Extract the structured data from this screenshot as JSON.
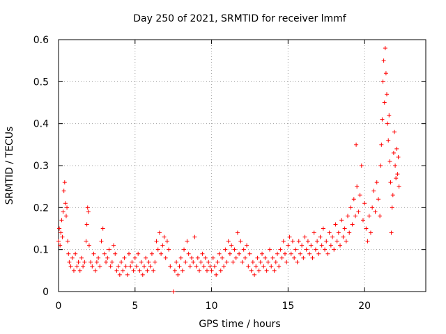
{
  "chart_data": {
    "type": "scatter",
    "title": "Day 250 of 2021, SRMTID for receiver lmmf",
    "xlabel": "GPS time / hours",
    "ylabel": "SRMTID / TECUs",
    "xlim": [
      0,
      24
    ],
    "ylim": [
      0,
      0.6
    ],
    "xticks": [
      0,
      5,
      10,
      15,
      20
    ],
    "xtick_labels": [
      "0",
      "5",
      "10",
      "15",
      "20"
    ],
    "yticks": [
      0,
      0.1,
      0.2,
      0.3,
      0.4,
      0.5,
      0.6
    ],
    "ytick_labels": [
      "0",
      "0.1",
      "0.2",
      "0.3",
      "0.4",
      "0.5",
      "0.6"
    ],
    "grid": true,
    "marker": "+",
    "series": [
      {
        "name": "SRMTID",
        "color": "#ff0000",
        "points": [
          [
            0.0,
            0.12
          ],
          [
            0.05,
            0.15
          ],
          [
            0.1,
            0.11
          ],
          [
            0.15,
            0.14
          ],
          [
            0.2,
            0.17
          ],
          [
            0.25,
            0.13
          ],
          [
            0.3,
            0.19
          ],
          [
            0.35,
            0.24
          ],
          [
            0.4,
            0.26
          ],
          [
            0.45,
            0.21
          ],
          [
            0.5,
            0.18
          ],
          [
            0.55,
            0.2
          ],
          [
            0.6,
            0.12
          ],
          [
            0.65,
            0.09
          ],
          [
            0.7,
            0.07
          ],
          [
            0.8,
            0.06
          ],
          [
            0.9,
            0.08
          ],
          [
            1.0,
            0.05
          ],
          [
            1.1,
            0.09
          ],
          [
            1.2,
            0.06
          ],
          [
            1.3,
            0.07
          ],
          [
            1.4,
            0.05
          ],
          [
            1.5,
            0.08
          ],
          [
            1.6,
            0.06
          ],
          [
            1.7,
            0.07
          ],
          [
            1.8,
            0.12
          ],
          [
            1.85,
            0.16
          ],
          [
            1.9,
            0.2
          ],
          [
            1.95,
            0.19
          ],
          [
            2.0,
            0.11
          ],
          [
            2.1,
            0.07
          ],
          [
            2.2,
            0.06
          ],
          [
            2.3,
            0.09
          ],
          [
            2.4,
            0.05
          ],
          [
            2.5,
            0.07
          ],
          [
            2.6,
            0.08
          ],
          [
            2.7,
            0.06
          ],
          [
            2.8,
            0.12
          ],
          [
            2.9,
            0.15
          ],
          [
            3.0,
            0.09
          ],
          [
            3.1,
            0.07
          ],
          [
            3.2,
            0.08
          ],
          [
            3.3,
            0.1
          ],
          [
            3.4,
            0.06
          ],
          [
            3.5,
            0.07
          ],
          [
            3.6,
            0.11
          ],
          [
            3.7,
            0.09
          ],
          [
            3.8,
            0.05
          ],
          [
            3.9,
            0.06
          ],
          [
            4.0,
            0.04
          ],
          [
            4.1,
            0.07
          ],
          [
            4.2,
            0.05
          ],
          [
            4.3,
            0.08
          ],
          [
            4.4,
            0.06
          ],
          [
            4.5,
            0.04
          ],
          [
            4.6,
            0.09
          ],
          [
            4.7,
            0.06
          ],
          [
            4.8,
            0.07
          ],
          [
            4.9,
            0.05
          ],
          [
            5.0,
            0.08
          ],
          [
            5.1,
            0.06
          ],
          [
            5.2,
            0.09
          ],
          [
            5.3,
            0.05
          ],
          [
            5.4,
            0.07
          ],
          [
            5.5,
            0.04
          ],
          [
            5.6,
            0.06
          ],
          [
            5.7,
            0.08
          ],
          [
            5.8,
            0.05
          ],
          [
            5.9,
            0.07
          ],
          [
            6.0,
            0.06
          ],
          [
            6.1,
            0.09
          ],
          [
            6.2,
            0.05
          ],
          [
            6.3,
            0.07
          ],
          [
            6.4,
            0.12
          ],
          [
            6.5,
            0.1
          ],
          [
            6.6,
            0.14
          ],
          [
            6.7,
            0.09
          ],
          [
            6.8,
            0.11
          ],
          [
            6.9,
            0.13
          ],
          [
            7.0,
            0.08
          ],
          [
            7.1,
            0.12
          ],
          [
            7.2,
            0.1
          ],
          [
            7.3,
            0.06
          ],
          [
            7.5,
            0.0
          ],
          [
            7.6,
            0.05
          ],
          [
            7.7,
            0.07
          ],
          [
            7.8,
            0.04
          ],
          [
            7.9,
            0.06
          ],
          [
            8.0,
            0.08
          ],
          [
            8.1,
            0.05
          ],
          [
            8.2,
            0.1
          ],
          [
            8.3,
            0.07
          ],
          [
            8.4,
            0.12
          ],
          [
            8.5,
            0.09
          ],
          [
            8.6,
            0.06
          ],
          [
            8.7,
            0.08
          ],
          [
            8.8,
            0.07
          ],
          [
            8.9,
            0.13
          ],
          [
            9.0,
            0.06
          ],
          [
            9.1,
            0.08
          ],
          [
            9.2,
            0.05
          ],
          [
            9.3,
            0.07
          ],
          [
            9.4,
            0.09
          ],
          [
            9.5,
            0.06
          ],
          [
            9.6,
            0.08
          ],
          [
            9.7,
            0.05
          ],
          [
            9.8,
            0.07
          ],
          [
            9.9,
            0.06
          ],
          [
            10.0,
            0.05
          ],
          [
            10.1,
            0.08
          ],
          [
            10.2,
            0.06
          ],
          [
            10.3,
            0.04
          ],
          [
            10.4,
            0.07
          ],
          [
            10.5,
            0.09
          ],
          [
            10.6,
            0.05
          ],
          [
            10.7,
            0.08
          ],
          [
            10.8,
            0.06
          ],
          [
            10.9,
            0.1
          ],
          [
            11.0,
            0.07
          ],
          [
            11.1,
            0.12
          ],
          [
            11.2,
            0.09
          ],
          [
            11.3,
            0.11
          ],
          [
            11.4,
            0.07
          ],
          [
            11.5,
            0.1
          ],
          [
            11.6,
            0.08
          ],
          [
            11.7,
            0.14
          ],
          [
            11.8,
            0.09
          ],
          [
            11.9,
            0.12
          ],
          [
            12.0,
            0.07
          ],
          [
            12.1,
            0.1
          ],
          [
            12.2,
            0.08
          ],
          [
            12.3,
            0.11
          ],
          [
            12.4,
            0.06
          ],
          [
            12.5,
            0.09
          ],
          [
            12.6,
            0.05
          ],
          [
            12.7,
            0.07
          ],
          [
            12.8,
            0.04
          ],
          [
            12.9,
            0.06
          ],
          [
            13.0,
            0.08
          ],
          [
            13.1,
            0.05
          ],
          [
            13.2,
            0.07
          ],
          [
            13.3,
            0.09
          ],
          [
            13.4,
            0.06
          ],
          [
            13.5,
            0.08
          ],
          [
            13.6,
            0.05
          ],
          [
            13.7,
            0.07
          ],
          [
            13.8,
            0.1
          ],
          [
            13.9,
            0.06
          ],
          [
            14.0,
            0.08
          ],
          [
            14.1,
            0.05
          ],
          [
            14.2,
            0.07
          ],
          [
            14.3,
            0.09
          ],
          [
            14.4,
            0.06
          ],
          [
            14.5,
            0.1
          ],
          [
            14.6,
            0.08
          ],
          [
            14.7,
            0.12
          ],
          [
            14.8,
            0.09
          ],
          [
            14.9,
            0.07
          ],
          [
            15.0,
            0.11
          ],
          [
            15.1,
            0.13
          ],
          [
            15.2,
            0.09
          ],
          [
            15.3,
            0.12
          ],
          [
            15.4,
            0.08
          ],
          [
            15.5,
            0.1
          ],
          [
            15.6,
            0.07
          ],
          [
            15.7,
            0.12
          ],
          [
            15.8,
            0.09
          ],
          [
            15.9,
            0.11
          ],
          [
            16.0,
            0.08
          ],
          [
            16.1,
            0.13
          ],
          [
            16.2,
            0.1
          ],
          [
            16.3,
            0.12
          ],
          [
            16.4,
            0.09
          ],
          [
            16.5,
            0.11
          ],
          [
            16.6,
            0.08
          ],
          [
            16.7,
            0.14
          ],
          [
            16.8,
            0.1
          ],
          [
            16.9,
            0.12
          ],
          [
            17.0,
            0.09
          ],
          [
            17.1,
            0.13
          ],
          [
            17.2,
            0.11
          ],
          [
            17.3,
            0.15
          ],
          [
            17.4,
            0.1
          ],
          [
            17.5,
            0.12
          ],
          [
            17.6,
            0.09
          ],
          [
            17.7,
            0.14
          ],
          [
            17.8,
            0.11
          ],
          [
            17.9,
            0.13
          ],
          [
            18.0,
            0.1
          ],
          [
            18.1,
            0.16
          ],
          [
            18.2,
            0.12
          ],
          [
            18.3,
            0.14
          ],
          [
            18.4,
            0.11
          ],
          [
            18.5,
            0.17
          ],
          [
            18.6,
            0.13
          ],
          [
            18.7,
            0.15
          ],
          [
            18.8,
            0.12
          ],
          [
            18.9,
            0.18
          ],
          [
            19.0,
            0.14
          ],
          [
            19.1,
            0.2
          ],
          [
            19.2,
            0.16
          ],
          [
            19.3,
            0.22
          ],
          [
            19.4,
            0.18
          ],
          [
            19.45,
            0.35
          ],
          [
            19.5,
            0.25
          ],
          [
            19.6,
            0.19
          ],
          [
            19.7,
            0.23
          ],
          [
            19.8,
            0.3
          ],
          [
            19.9,
            0.17
          ],
          [
            20.0,
            0.21
          ],
          [
            20.1,
            0.15
          ],
          [
            20.2,
            0.12
          ],
          [
            20.3,
            0.18
          ],
          [
            20.4,
            0.14
          ],
          [
            20.5,
            0.2
          ],
          [
            20.6,
            0.24
          ],
          [
            20.7,
            0.19
          ],
          [
            20.8,
            0.26
          ],
          [
            20.9,
            0.22
          ],
          [
            21.0,
            0.18
          ],
          [
            21.05,
            0.3
          ],
          [
            21.1,
            0.35
          ],
          [
            21.15,
            0.41
          ],
          [
            21.2,
            0.5
          ],
          [
            21.25,
            0.55
          ],
          [
            21.3,
            0.45
          ],
          [
            21.35,
            0.58
          ],
          [
            21.4,
            0.52
          ],
          [
            21.45,
            0.47
          ],
          [
            21.5,
            0.4
          ],
          [
            21.55,
            0.36
          ],
          [
            21.6,
            0.42
          ],
          [
            21.65,
            0.31
          ],
          [
            21.7,
            0.26
          ],
          [
            21.75,
            0.14
          ],
          [
            21.8,
            0.2
          ],
          [
            21.85,
            0.23
          ],
          [
            21.9,
            0.33
          ],
          [
            21.95,
            0.38
          ],
          [
            22.0,
            0.3
          ],
          [
            22.05,
            0.27
          ],
          [
            22.1,
            0.34
          ],
          [
            22.15,
            0.28
          ],
          [
            22.2,
            0.32
          ],
          [
            22.25,
            0.25
          ]
        ]
      }
    ]
  }
}
